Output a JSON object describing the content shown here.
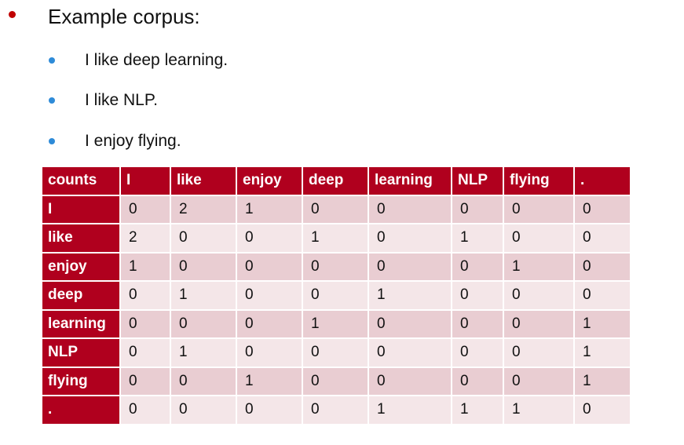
{
  "slide": {
    "heading": "Example corpus:",
    "corpus": [
      "I like deep learning.",
      "I like NLP.",
      "I enjoy flying."
    ],
    "colors": {
      "primary_bullet": "#c00000",
      "secondary_bullet": "#2e8bd8",
      "table_header": "#b0001e",
      "row_dark": "#e9cdd2",
      "row_light": "#f4e6e8"
    }
  },
  "table": {
    "corner": "counts",
    "columns": [
      "I",
      "like",
      "enjoy",
      "deep",
      "learning",
      "NLP",
      "flying",
      "."
    ],
    "rows": [
      {
        "label": "I",
        "values": [
          "0",
          "2",
          "1",
          "0",
          "0",
          "0",
          "0",
          "0"
        ]
      },
      {
        "label": "like",
        "values": [
          "2",
          "0",
          "0",
          "1",
          "0",
          "1",
          "0",
          "0"
        ]
      },
      {
        "label": "enjoy",
        "values": [
          "1",
          "0",
          "0",
          "0",
          "0",
          "0",
          "1",
          "0"
        ]
      },
      {
        "label": "deep",
        "values": [
          "0",
          "1",
          "0",
          "0",
          "1",
          "0",
          "0",
          "0"
        ]
      },
      {
        "label": "learning",
        "values": [
          "0",
          "0",
          "0",
          "1",
          "0",
          "0",
          "0",
          "1"
        ]
      },
      {
        "label": "NLP",
        "values": [
          "0",
          "1",
          "0",
          "0",
          "0",
          "0",
          "0",
          "1"
        ]
      },
      {
        "label": "flying",
        "values": [
          "0",
          "0",
          "1",
          "0",
          "0",
          "0",
          "0",
          "1"
        ]
      },
      {
        "label": ".",
        "values": [
          "0",
          "0",
          "0",
          "0",
          "1",
          "1",
          "1",
          "0"
        ]
      }
    ]
  }
}
